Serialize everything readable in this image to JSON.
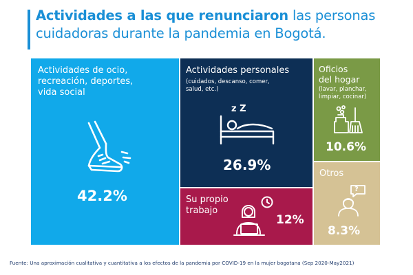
{
  "title": {
    "bold": "Actividades a las que renunciaron",
    "line1_rest": " las personas",
    "line2": "cuidadoras durante la pandemia en Bogotá."
  },
  "colors": {
    "title_blue": "#1a8fd6",
    "leisure": "#11a9ea",
    "personal": "#0d2f55",
    "house": "#7a9a46",
    "work": "#a8194b",
    "other": "#d5c295"
  },
  "chart_data": {
    "type": "treemap",
    "title": "Actividades a las que renunciaron las personas cuidadoras durante la pandemia en Bogotá.",
    "categories": [
      "Actividades de ocio, recreación, deportes, vida social",
      "Actividades personales (cuidados, descanso, comer, salud, etc.)",
      "Oficios del hogar (lavar, planchar, limpiar, cocinar)",
      "Su propio trabajo",
      "Otros"
    ],
    "values": [
      42.2,
      26.9,
      10.6,
      12,
      8.3
    ],
    "unit": "%"
  },
  "tiles": {
    "leisure": {
      "label_lines": [
        "Actividades de ocio,",
        "recreación, deportes,",
        "vida social"
      ],
      "value": "42.2%",
      "icon": "running-shoe-icon"
    },
    "personal": {
      "label": "Actividades personales",
      "sub_lines": [
        "(cuidados, descanso, comer,",
        "salud, etc.)"
      ],
      "value": "26.9%",
      "icon": "sleeping-in-bed-icon",
      "icon_text": "z Z"
    },
    "house": {
      "label_lines": [
        "Oficios",
        "del hogar"
      ],
      "sub_lines": [
        "(lavar, planchar,",
        "limpiar, cocinar)"
      ],
      "value": "10.6%",
      "icon": "cleaning-supplies-icon"
    },
    "work": {
      "label_lines": [
        "Su propio",
        "trabajo"
      ],
      "value": "12%",
      "icon": "woman-at-laptop-clock-icon"
    },
    "other": {
      "label": "Otros",
      "value": "8.3%",
      "icon": "person-question-bubble-icon",
      "icon_text": "?"
    }
  },
  "footnote": "Fuente: Una aproximación cualitativa y cuantitativa a los efectos de la pandemia por COVID-19 en la mujer bogotana (Sep 2020-May2021)"
}
